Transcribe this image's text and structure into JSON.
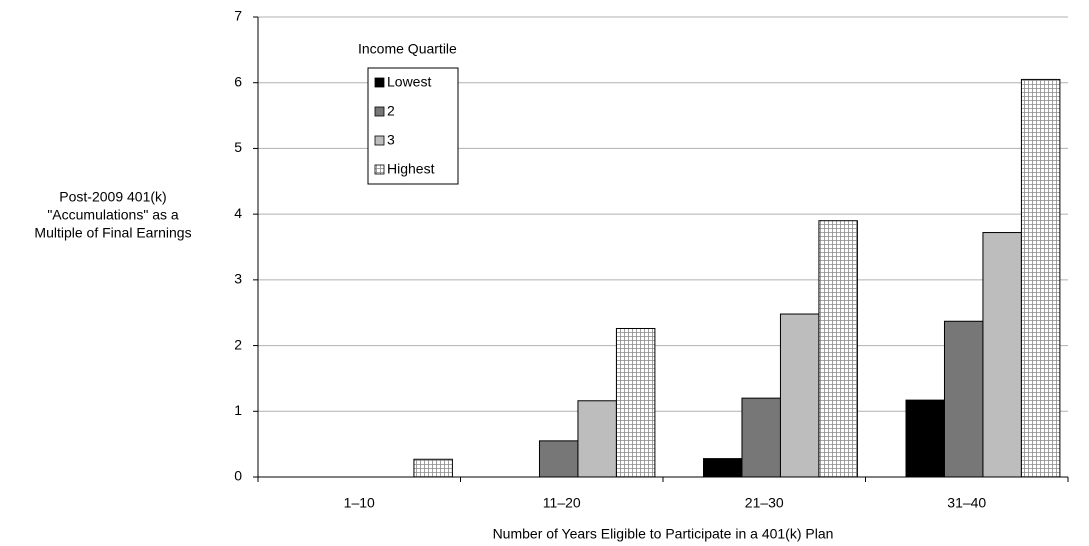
{
  "chart_data": {
    "type": "bar",
    "x_label": "Number of Years Eligible to Participate in a 401(k) Plan",
    "y_label": [
      "Post-2009 401(k)",
      "\"Accumulations\" as a",
      "Multiple of Final Earnings"
    ],
    "categories": [
      "1–10",
      "11–20",
      "21–30",
      "31–40"
    ],
    "legend_title": "Income Quartile",
    "series": [
      {
        "name": "Lowest",
        "color": "#000000",
        "values": [
          0,
          0,
          0.28,
          1.17
        ]
      },
      {
        "name": "2",
        "color": "#777777",
        "values": [
          0,
          0.55,
          1.2,
          2.37
        ]
      },
      {
        "name": "3",
        "color": "#bdbdbd",
        "values": [
          0,
          1.16,
          2.48,
          3.72
        ]
      },
      {
        "name": "Highest",
        "color": "#ffffff",
        "pattern": "grid",
        "values": [
          0.27,
          2.26,
          3.9,
          6.05
        ]
      }
    ],
    "ylim": [
      0,
      7
    ],
    "yticks": [
      0,
      1,
      2,
      3,
      4,
      5,
      6,
      7
    ],
    "grid": true
  }
}
